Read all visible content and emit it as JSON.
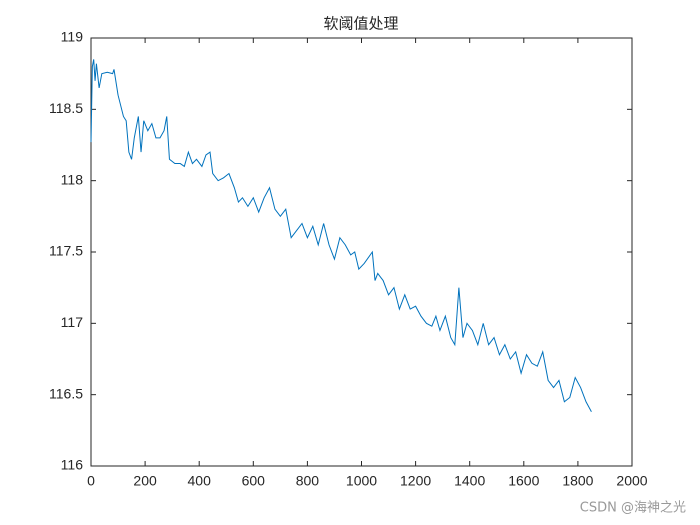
{
  "chart_data": {
    "type": "line",
    "title": "软阈值处理",
    "watermark": "CSDN @海神之光",
    "x": [
      0,
      5,
      10,
      15,
      20,
      30,
      40,
      60,
      80,
      85,
      100,
      120,
      130,
      140,
      150,
      160,
      175,
      185,
      195,
      210,
      225,
      240,
      255,
      270,
      280,
      290,
      310,
      330,
      345,
      360,
      375,
      390,
      410,
      425,
      440,
      450,
      470,
      490,
      510,
      530,
      545,
      560,
      580,
      600,
      620,
      640,
      660,
      680,
      700,
      720,
      740,
      760,
      780,
      800,
      820,
      840,
      860,
      880,
      900,
      920,
      940,
      960,
      975,
      990,
      1010,
      1040,
      1050,
      1060,
      1080,
      1100,
      1120,
      1140,
      1160,
      1180,
      1200,
      1220,
      1240,
      1260,
      1275,
      1290,
      1310,
      1330,
      1345,
      1360,
      1375,
      1390,
      1410,
      1430,
      1450,
      1470,
      1490,
      1510,
      1530,
      1550,
      1570,
      1590,
      1610,
      1630,
      1650,
      1670,
      1690,
      1710,
      1730,
      1750,
      1770,
      1790,
      1810,
      1830,
      1850
    ],
    "series": [
      {
        "color": "#0072bd",
        "values": [
          118.27,
          118.8,
          118.85,
          118.7,
          118.82,
          118.65,
          118.75,
          118.76,
          118.75,
          118.78,
          118.6,
          118.45,
          118.42,
          118.2,
          118.15,
          118.3,
          118.45,
          118.2,
          118.42,
          118.35,
          118.4,
          118.3,
          118.3,
          118.35,
          118.45,
          118.15,
          118.12,
          118.12,
          118.1,
          118.2,
          118.12,
          118.15,
          118.1,
          118.18,
          118.2,
          118.05,
          118.0,
          118.02,
          118.05,
          117.95,
          117.85,
          117.88,
          117.82,
          117.88,
          117.78,
          117.88,
          117.95,
          117.8,
          117.75,
          117.8,
          117.6,
          117.65,
          117.7,
          117.6,
          117.68,
          117.55,
          117.7,
          117.55,
          117.45,
          117.6,
          117.55,
          117.48,
          117.5,
          117.38,
          117.42,
          117.5,
          117.3,
          117.35,
          117.3,
          117.2,
          117.25,
          117.1,
          117.2,
          117.1,
          117.12,
          117.05,
          117.0,
          116.98,
          117.05,
          116.95,
          117.05,
          116.9,
          116.85,
          117.25,
          116.9,
          117.0,
          116.95,
          116.85,
          117.0,
          116.85,
          116.9,
          116.78,
          116.85,
          116.75,
          116.8,
          116.65,
          116.78,
          116.72,
          116.7,
          116.8,
          116.6,
          116.55,
          116.6,
          116.45,
          116.48,
          116.62,
          116.55,
          116.45,
          116.38
        ]
      }
    ],
    "xlim": [
      0,
      2000
    ],
    "xticks": [
      0,
      200,
      400,
      600,
      800,
      1000,
      1200,
      1400,
      1600,
      1800,
      2000
    ],
    "ylim": [
      116,
      119
    ],
    "yticks": [
      116,
      116.5,
      117,
      117.5,
      118,
      118.5,
      119
    ]
  }
}
